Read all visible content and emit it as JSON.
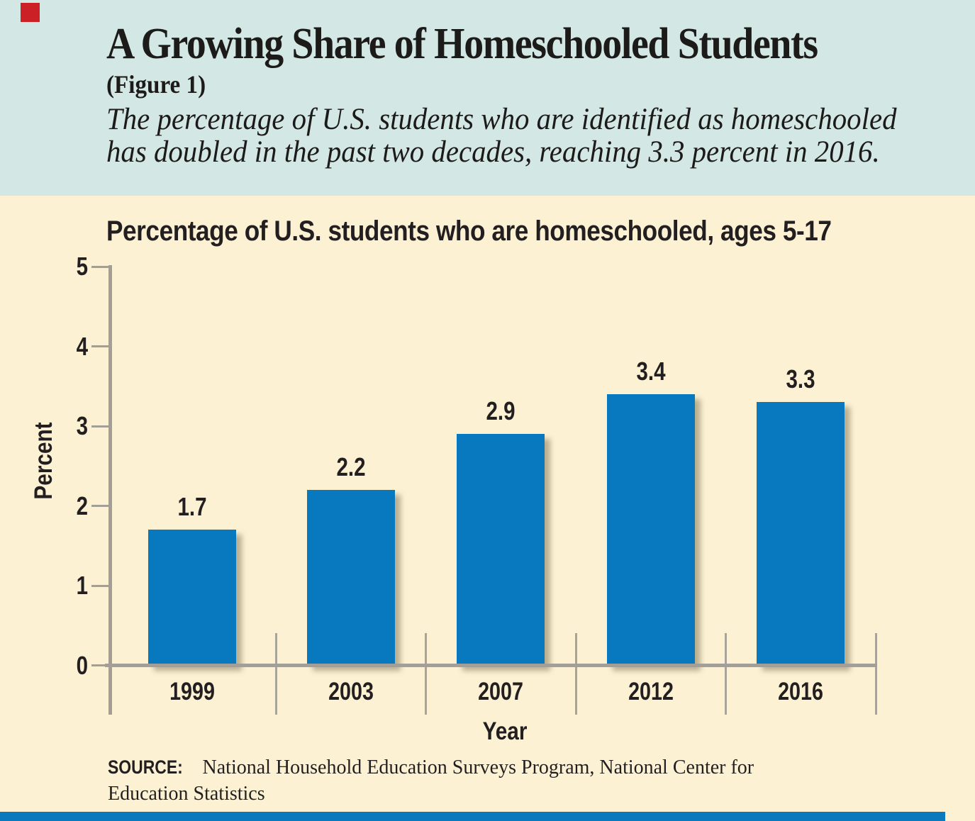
{
  "brand": {
    "red_square_color": "#cb2026",
    "bottom_strip_color": "#0b79be"
  },
  "header": {
    "background_color": "#d3e8e4",
    "title": "A Growing Share of Homeschooled Students",
    "figure_label": "(Figure 1)",
    "subtitle_line1": "The percentage of U.S. students who are identified as homeschooled",
    "subtitle_line2": "has doubled in the past two decades, reaching 3.3 percent in 2016."
  },
  "chart_data": {
    "type": "bar",
    "title": "Percentage of U.S. students who are homeschooled, ages 5-17",
    "categories": [
      "1999",
      "2003",
      "2007",
      "2012",
      "2016"
    ],
    "values": [
      1.7,
      2.2,
      2.9,
      3.4,
      3.3
    ],
    "value_labels": [
      "1.7",
      "2.2",
      "2.9",
      "3.4",
      "3.3"
    ],
    "xlabel": "Year",
    "ylabel": "Percent",
    "ylim": [
      0,
      5
    ],
    "yticks": [
      0,
      1,
      2,
      3,
      4,
      5
    ],
    "grid": false,
    "legend_position": "none",
    "bar_color": "#0878bf",
    "axis_color": "#a49f96",
    "background_color": "#fcf2d3"
  },
  "source": {
    "label": "SOURCE:",
    "line1": "National Household Education Surveys Program, National Center for",
    "line2": "Education Statistics"
  }
}
